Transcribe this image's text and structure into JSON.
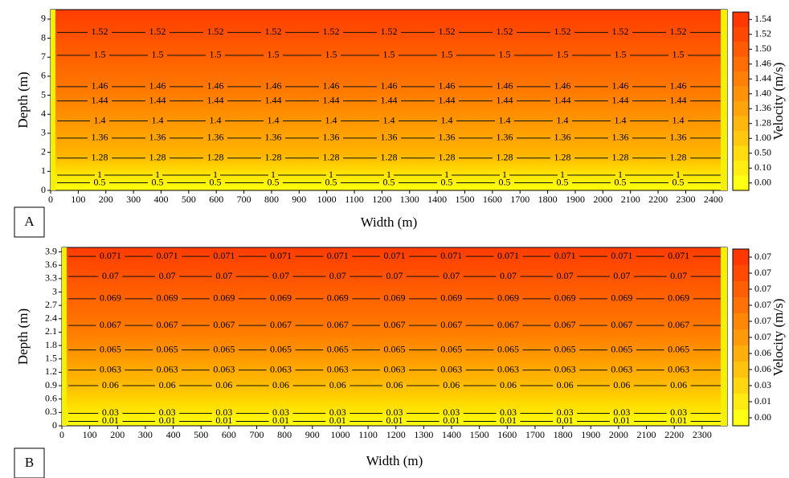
{
  "chart_data": [
    {
      "type": "contour",
      "panel_label": "A",
      "x_label": "Width (m)",
      "y_label": "Depth (m)",
      "colorbar_label": "Velocity (m/s)",
      "xlim": [
        0,
        2450
      ],
      "xticks": [
        0,
        100,
        200,
        300,
        400,
        500,
        600,
        700,
        800,
        900,
        1000,
        1100,
        1200,
        1300,
        1400,
        1500,
        1600,
        1700,
        1800,
        1900,
        2000,
        2100,
        2200,
        2300,
        2400
      ],
      "ylim": [
        0,
        9.5
      ],
      "yticks": [
        0,
        1,
        2,
        3,
        4,
        5,
        6,
        7,
        8,
        9
      ],
      "contours": [
        {
          "level": 1.52,
          "depth": 8.3
        },
        {
          "level": 1.5,
          "depth": 7.1
        },
        {
          "level": 1.46,
          "depth": 5.45
        },
        {
          "level": 1.44,
          "depth": 4.7
        },
        {
          "level": 1.4,
          "depth": 3.65
        },
        {
          "level": 1.36,
          "depth": 2.75
        },
        {
          "level": 1.28,
          "depth": 1.7
        },
        {
          "level": 1,
          "depth": 0.8
        },
        {
          "level": 0.5,
          "depth": 0.4
        }
      ],
      "colorbar_ticks": [
        {
          "value": 0,
          "label": "0.00"
        },
        {
          "value": 0.1,
          "label": "0.10"
        },
        {
          "value": 0.5,
          "label": "0.50"
        },
        {
          "value": 1,
          "label": "1.00"
        },
        {
          "value": 1.28,
          "label": "1.28"
        },
        {
          "value": 1.36,
          "label": "1.36"
        },
        {
          "value": 1.4,
          "label": "1.40"
        },
        {
          "value": 1.44,
          "label": "1.44"
        },
        {
          "value": 1.46,
          "label": "1.46"
        },
        {
          "value": 1.5,
          "label": "1.50"
        },
        {
          "value": 1.52,
          "label": "1.52"
        },
        {
          "value": 1.54,
          "label": "1.54"
        }
      ]
    },
    {
      "type": "contour",
      "panel_label": "B",
      "x_label": "Width (m)",
      "y_label": "Depth (m)",
      "colorbar_label": "Velocity (m/s)",
      "xlim": [
        0,
        2390
      ],
      "xticks": [
        0,
        100,
        200,
        300,
        400,
        500,
        600,
        700,
        800,
        900,
        1000,
        1100,
        1200,
        1300,
        1400,
        1500,
        1600,
        1700,
        1800,
        1900,
        2000,
        2100,
        2200,
        2300
      ],
      "ylim": [
        0,
        4.0
      ],
      "yticks": [
        0,
        0.3,
        0.6,
        0.9,
        1.2,
        1.5,
        1.8,
        2.1,
        2.4,
        2.7,
        3,
        3.3,
        3.6,
        3.9
      ],
      "contours": [
        {
          "level": 0.071,
          "depth": 3.8
        },
        {
          "level": 0.07,
          "depth": 3.35
        },
        {
          "level": 0.069,
          "depth": 2.85
        },
        {
          "level": 0.067,
          "depth": 2.25
        },
        {
          "level": 0.065,
          "depth": 1.7
        },
        {
          "level": 0.063,
          "depth": 1.25
        },
        {
          "level": 0.06,
          "depth": 0.9
        },
        {
          "level": 0.03,
          "depth": 0.28
        },
        {
          "level": 0.01,
          "depth": 0.1
        }
      ],
      "colorbar_ticks": [
        {
          "value": 0,
          "label": "0.00"
        },
        {
          "value": 0.01,
          "label": "0.01"
        },
        {
          "value": 0.03,
          "label": "0.03"
        },
        {
          "value": 0.06,
          "label": "0.06"
        },
        {
          "value": 0.063,
          "label": "0.06"
        },
        {
          "value": 0.065,
          "label": "0.07"
        },
        {
          "value": 0.067,
          "label": "0.07"
        },
        {
          "value": 0.069,
          "label": "0.07"
        },
        {
          "value": 0.07,
          "label": "0.07"
        },
        {
          "value": 0.071,
          "label": "0.07"
        },
        {
          "value": 0.072,
          "label": "0.07"
        }
      ]
    }
  ]
}
